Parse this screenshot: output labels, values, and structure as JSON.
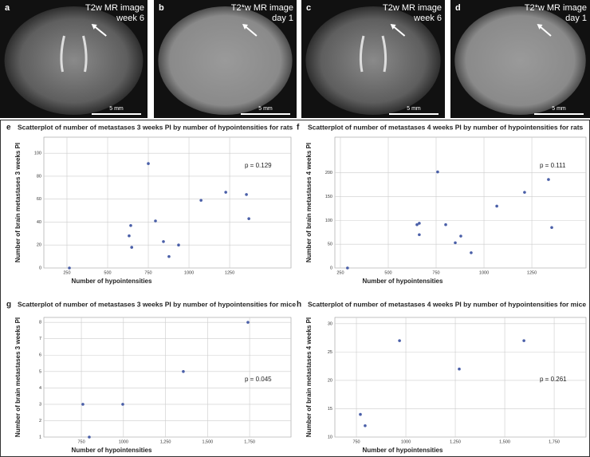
{
  "panels": [
    {
      "label": "a",
      "caption": [
        "T2w MR image",
        "week 6"
      ],
      "scale": "5 mm"
    },
    {
      "label": "b",
      "caption": [
        "T2*w MR image",
        "day 1"
      ],
      "scale": "5 mm"
    },
    {
      "label": "c",
      "caption": [
        "T2w MR image",
        "week 6"
      ],
      "scale": "5 mm"
    },
    {
      "label": "d",
      "caption": [
        "T2*w MR image",
        "day 1"
      ],
      "scale": "5 mm"
    }
  ],
  "chart_data": [
    {
      "type": "scatter",
      "panel_label": "e",
      "title": "Scatterplot of number of metastases 3 weeks PI by number of hypointensities for rats",
      "xlabel": "Number of hypointensities",
      "ylabel": "Number of brain metastases 3 weeks PI",
      "annotation": "p = 0.129",
      "x": [
        265,
        642,
        632,
        648,
        750,
        794,
        843,
        877,
        936,
        1074,
        1226,
        1353,
        1368
      ],
      "values": [
        0,
        37,
        28,
        18,
        91,
        41,
        23,
        10,
        20,
        59,
        66,
        64,
        43
      ],
      "xlim": [
        108,
        1627
      ],
      "ylim": [
        0,
        114
      ],
      "xticks": [
        250,
        500,
        750,
        1000,
        1250
      ],
      "yticks": [
        0,
        20,
        40,
        60,
        80,
        100
      ],
      "grid": true,
      "color": "#4a5fa8"
    },
    {
      "type": "scatter",
      "panel_label": "f",
      "title": "Scatterplot of number of metastases 4 weeks PI by number of hypointensities for rats",
      "xlabel": "Number of hypointensities",
      "ylabel": "Number of brain metastases 4 weeks PI",
      "annotation": "p = 0.111",
      "x": [
        287,
        758,
        650,
        662,
        662,
        800,
        850,
        879,
        933,
        1067,
        1212,
        1337,
        1354
      ],
      "values": [
        0,
        202,
        91,
        94,
        70,
        91,
        53,
        67,
        32,
        130,
        159,
        186,
        85
      ],
      "xlim": [
        221,
        1533
      ],
      "ylim": [
        0,
        275
      ],
      "xticks": [
        250,
        500,
        750,
        1000,
        1250
      ],
      "yticks": [
        0,
        50,
        100,
        150,
        200
      ],
      "grid": true,
      "color": "#4a5fa8"
    },
    {
      "type": "scatter",
      "panel_label": "g",
      "title": "Scatterplot of number of metastases 3 weeks PI by number of hypointensities for mice",
      "xlabel": "Number of hypointensities",
      "ylabel": "Number of brain metastases 3 weeks PI",
      "annotation": "p = 0.045",
      "x": [
        797,
        759,
        996,
        1356,
        1740
      ],
      "values": [
        1,
        3,
        3,
        5,
        8
      ],
      "xlim": [
        527,
        1996
      ],
      "ylim": [
        1,
        8.3
      ],
      "xticks": [
        750,
        1000,
        {
          "value": 1250,
          "label": "1,250"
        },
        {
          "value": 1500,
          "label": "1,500"
        },
        {
          "value": 1750,
          "label": "1,750"
        }
      ],
      "yticks": [
        1,
        2,
        3,
        4,
        5,
        6,
        7,
        8
      ],
      "grid": true,
      "color": "#4a5fa8"
    },
    {
      "type": "scatter",
      "panel_label": "h",
      "title": "Scatterplot of number of metastases 4 weeks PI by number of hypointensities for mice",
      "xlabel": "Number of hypointensities",
      "ylabel": "Number of brain metastases 4 weeks PI",
      "annotation": "p = 0.261",
      "x": [
        770,
        794,
        968,
        1270,
        1597
      ],
      "values": [
        14,
        12,
        27,
        22,
        27
      ],
      "xlim": [
        641,
        1911
      ],
      "ylim": [
        10,
        31.1
      ],
      "xticks": [
        750,
        1000,
        {
          "value": 1250,
          "label": "1,250"
        },
        {
          "value": 1500,
          "label": "1,500"
        },
        {
          "value": 1750,
          "label": "1,750"
        }
      ],
      "yticks": [
        10,
        15,
        20,
        25,
        30
      ],
      "grid": true,
      "color": "#4a5fa8"
    }
  ]
}
